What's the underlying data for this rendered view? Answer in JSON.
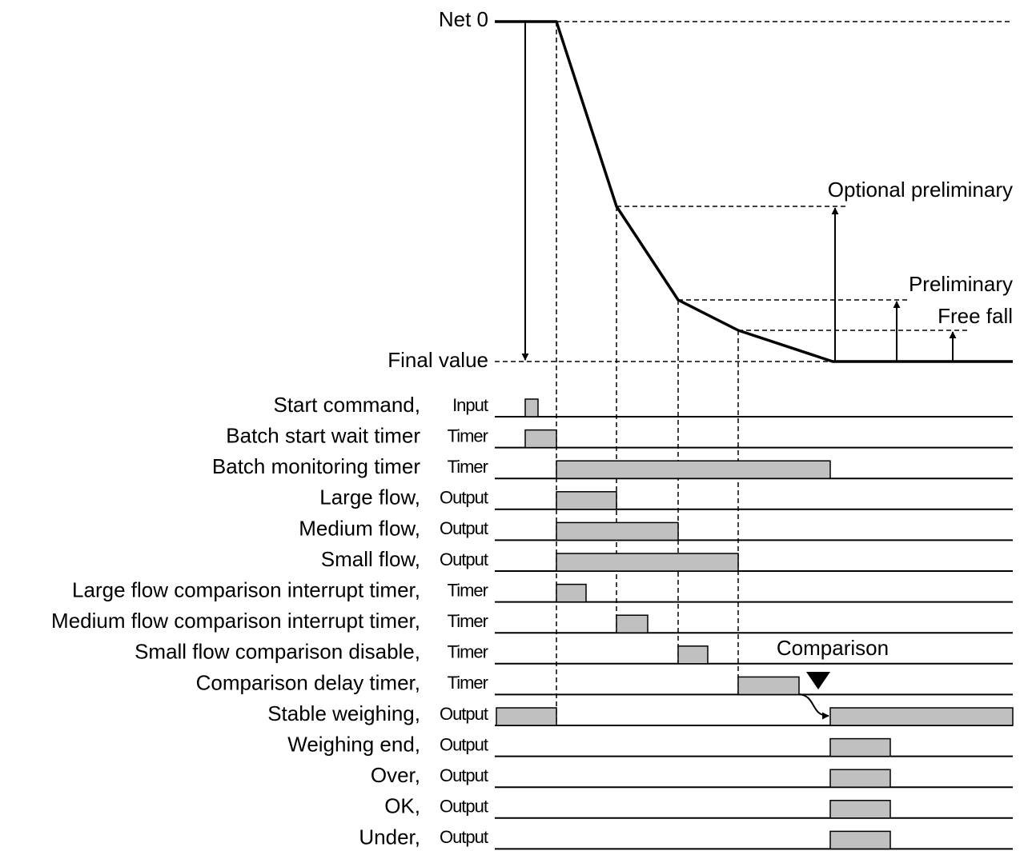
{
  "labels": {
    "net_zero": "Net 0",
    "final_value": "Final value",
    "optional_preliminary": "Optional preliminary",
    "preliminary": "Preliminary",
    "free_fall": "Free fall",
    "comparison": "Comparison"
  },
  "signals": [
    {
      "name": "Start command,",
      "kind": "Input"
    },
    {
      "name": "Batch start wait timer",
      "kind": "Timer"
    },
    {
      "name": "Batch monitoring timer",
      "kind": "Timer"
    },
    {
      "name": "Large flow,",
      "kind": "Output"
    },
    {
      "name": "Medium flow,",
      "kind": "Output"
    },
    {
      "name": "Small flow,",
      "kind": "Output"
    },
    {
      "name": "Large flow comparison interrupt timer,",
      "kind": "Timer"
    },
    {
      "name": "Medium flow comparison interrupt timer,",
      "kind": "Timer"
    },
    {
      "name": "Small flow comparison disable,",
      "kind": "Timer"
    },
    {
      "name": "Comparison delay timer,",
      "kind": "Timer"
    },
    {
      "name": "Stable weighing,",
      "kind": "Output"
    },
    {
      "name": "Weighing end,",
      "kind": "Output"
    },
    {
      "name": "Over,",
      "kind": "Output"
    },
    {
      "name": "OK,",
      "kind": "Output"
    },
    {
      "name": "Under,",
      "kind": "Output"
    }
  ]
}
